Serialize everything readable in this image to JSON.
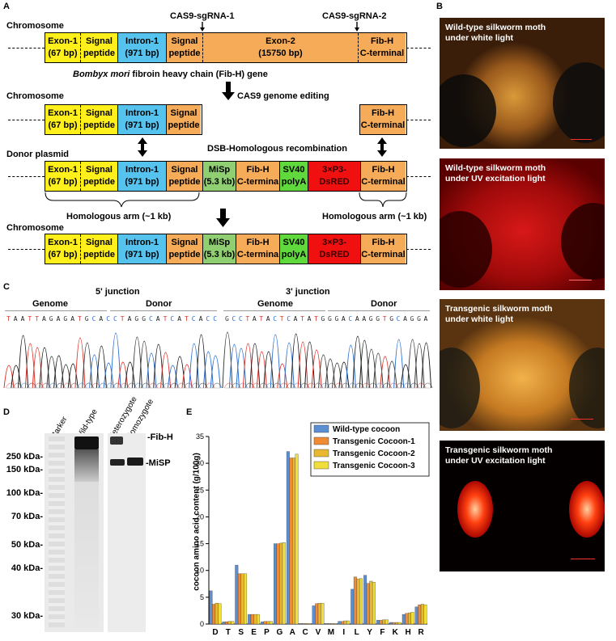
{
  "panels": {
    "A": "A",
    "B": "B",
    "C": "C",
    "D": "D",
    "E": "E"
  },
  "panelA": {
    "sgrna1": "CAS9-sgRNA-1",
    "sgrna2": "CAS9-sgRNA-2",
    "row1_title": "Chromosome",
    "row1": [
      {
        "top": "Exon-1",
        "bottom": "(67 bp)"
      },
      {
        "top": "Signal",
        "bottom": "peptide"
      },
      {
        "top": "Intron-1",
        "bottom": "(971 bp)"
      },
      {
        "top": "Signal",
        "bottom": "peptide"
      },
      {
        "top": "Exon-2",
        "bottom": "(15750 bp)"
      },
      {
        "top": "Fib-H",
        "bottom": "C-terminal"
      }
    ],
    "gene_caption_italic": "Bombyx mori",
    "gene_caption_rest": " fibroin heavy chain (Fib-H) gene",
    "edit_label": "CAS9 genome editing",
    "row2_title": "Chromosome",
    "row2_left": [
      {
        "top": "Exon-1",
        "bottom": "(67 bp)"
      },
      {
        "top": "Signal",
        "bottom": "peptide"
      },
      {
        "top": "Intron-1",
        "bottom": "(971 bp)"
      },
      {
        "top": "Signal",
        "bottom": "peptide"
      }
    ],
    "row2_right": {
      "top": "Fib-H",
      "bottom": "C-terminal"
    },
    "hr_label": "DSB-Homologous recombination",
    "row3_title": "Donor plasmid",
    "row4_title": "Chromosome",
    "donor": [
      {
        "top": "Exon-1",
        "bottom": "(67 bp)"
      },
      {
        "top": "Signal",
        "bottom": "peptide"
      },
      {
        "top": "Intron-1",
        "bottom": "(971 bp)"
      },
      {
        "top": "Signal",
        "bottom": "peptide"
      },
      {
        "top": "MiSp",
        "bottom": "(5.3 kb)"
      },
      {
        "top": "Fib-H",
        "bottom": "C-termina"
      },
      {
        "top": "SV40",
        "bottom": "polyA"
      },
      {
        "top": "3×P3-",
        "bottom": "DsRED"
      },
      {
        "top": "Fib-H",
        "bottom": "C-terminal"
      }
    ],
    "arm_left": "Homologous arm (~1 kb)",
    "arm_right": "Homologous arm (~1 kb)"
  },
  "panelB": [
    {
      "caption_1": "Wild-type silkworm moth",
      "caption_2": "under white  light"
    },
    {
      "caption_1": "Wild-type silkworm moth",
      "caption_2": "under UV excitation light"
    },
    {
      "caption_1": "Transgenic silkworm moth",
      "caption_2": "under white  light"
    },
    {
      "caption_1": "Transgenic silkworm moth",
      "caption_2": "under UV excitation light"
    }
  ],
  "panelC": {
    "left_title": "5' junction",
    "right_title": "3' junction",
    "genome": "Genome",
    "donor": "Donor",
    "seq_left_a": "TAATTAGAGATGCACC",
    "seq_left_b": "TAGGCATCATCACC",
    "seq_right_a": "GCCTATACTCATAT",
    "seq_right_b": "GGGACAAGGTGCAGGA"
  },
  "panelD": {
    "lanes": [
      "Marker",
      "Wild-type",
      "Heterozygote",
      "Homozygote"
    ],
    "markers": [
      "250 kDa-",
      "150 kDa-",
      "100 kDa-",
      "70 kDa-",
      "50 kDa-",
      "40 kDa-",
      "30 kDa-"
    ],
    "band_fibh": "-Fib-H",
    "band_misp": "-MiSP"
  },
  "colors": {
    "A": "#1a1a1a",
    "T": "#e0342b",
    "G": "#3a3a3a",
    "C": "#2c6fd1",
    "series": [
      "#5b8fd3",
      "#ef8a35",
      "#e8b830",
      "#f0df3a"
    ]
  },
  "chart_data": {
    "type": "bar",
    "ylabel": "cocoon amino acid content (g/100g)",
    "ylim": [
      0,
      35
    ],
    "yticks": [
      0,
      5,
      10,
      15,
      20,
      25,
      30,
      35
    ],
    "categories": [
      "D",
      "T",
      "S",
      "E",
      "P",
      "G",
      "A",
      "C",
      "V",
      "M",
      "I",
      "L",
      "Y",
      "F",
      "K",
      "H",
      "R"
    ],
    "series": [
      {
        "name": "Wild-type  cocoon",
        "values": [
          6.2,
          0.4,
          11.0,
          1.8,
          0.4,
          15.0,
          32.2,
          0.1,
          3.4,
          0.1,
          0.5,
          6.5,
          9.1,
          0.7,
          0.3,
          1.8,
          3.2
        ]
      },
      {
        "name": "Transgenic Cocoon-1",
        "values": [
          3.7,
          0.4,
          9.4,
          1.8,
          0.5,
          15.0,
          31.0,
          0.1,
          3.8,
          0.1,
          0.5,
          8.8,
          7.6,
          0.7,
          0.3,
          2.0,
          3.6
        ]
      },
      {
        "name": "Transgenic Cocoon-2",
        "values": [
          3.9,
          0.5,
          9.4,
          1.8,
          0.5,
          15.1,
          31.0,
          0.1,
          3.9,
          0.1,
          0.6,
          8.4,
          8.0,
          0.8,
          0.3,
          2.1,
          3.7
        ]
      },
      {
        "name": "Transgenic Cocoon-3",
        "values": [
          3.8,
          0.5,
          9.4,
          1.8,
          0.5,
          15.2,
          31.7,
          0.1,
          3.9,
          0.1,
          0.6,
          8.5,
          7.8,
          0.8,
          0.3,
          2.2,
          3.6
        ]
      }
    ]
  }
}
